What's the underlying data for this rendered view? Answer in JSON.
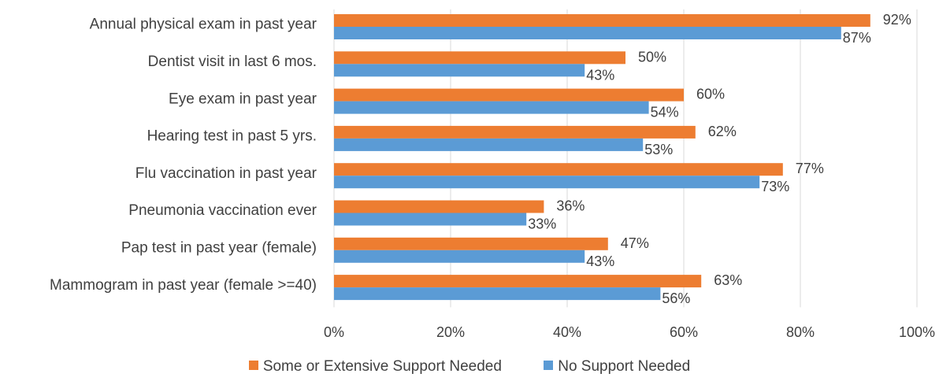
{
  "chart_data": {
    "type": "bar",
    "orientation": "horizontal",
    "categories": [
      "Annual physical exam in past year",
      "Dentist visit in last 6 mos.",
      "Eye exam in past year",
      "Hearing test in past 5 yrs.",
      "Flu vaccination in past year",
      "Pneumonia vaccination ever",
      "Pap test in past year (female)",
      "Mammogram in past year (female >=40)"
    ],
    "series": [
      {
        "name": "Some or Extensive Support Needed",
        "color": "#ED7D31",
        "values": [
          92,
          50,
          60,
          62,
          77,
          36,
          47,
          63
        ],
        "labels": [
          "92%",
          "50%",
          "60%",
          "62%",
          "77%",
          "36%",
          "47%",
          "63%"
        ]
      },
      {
        "name": "No Support Needed",
        "color": "#5B9BD5",
        "values": [
          87,
          43,
          54,
          53,
          73,
          33,
          43,
          56
        ],
        "labels": [
          "87%",
          "43%",
          "54%",
          "53%",
          "73%",
          "33%",
          "43%",
          "56%"
        ]
      }
    ],
    "xlim": [
      0,
      100
    ],
    "ticks": [
      0,
      20,
      40,
      60,
      80,
      100
    ],
    "tick_labels": [
      "0%",
      "20%",
      "40%",
      "60%",
      "80%",
      "100%"
    ],
    "grid": true,
    "gridline_color": "#D9D9D9",
    "legend_position": "bottom"
  }
}
